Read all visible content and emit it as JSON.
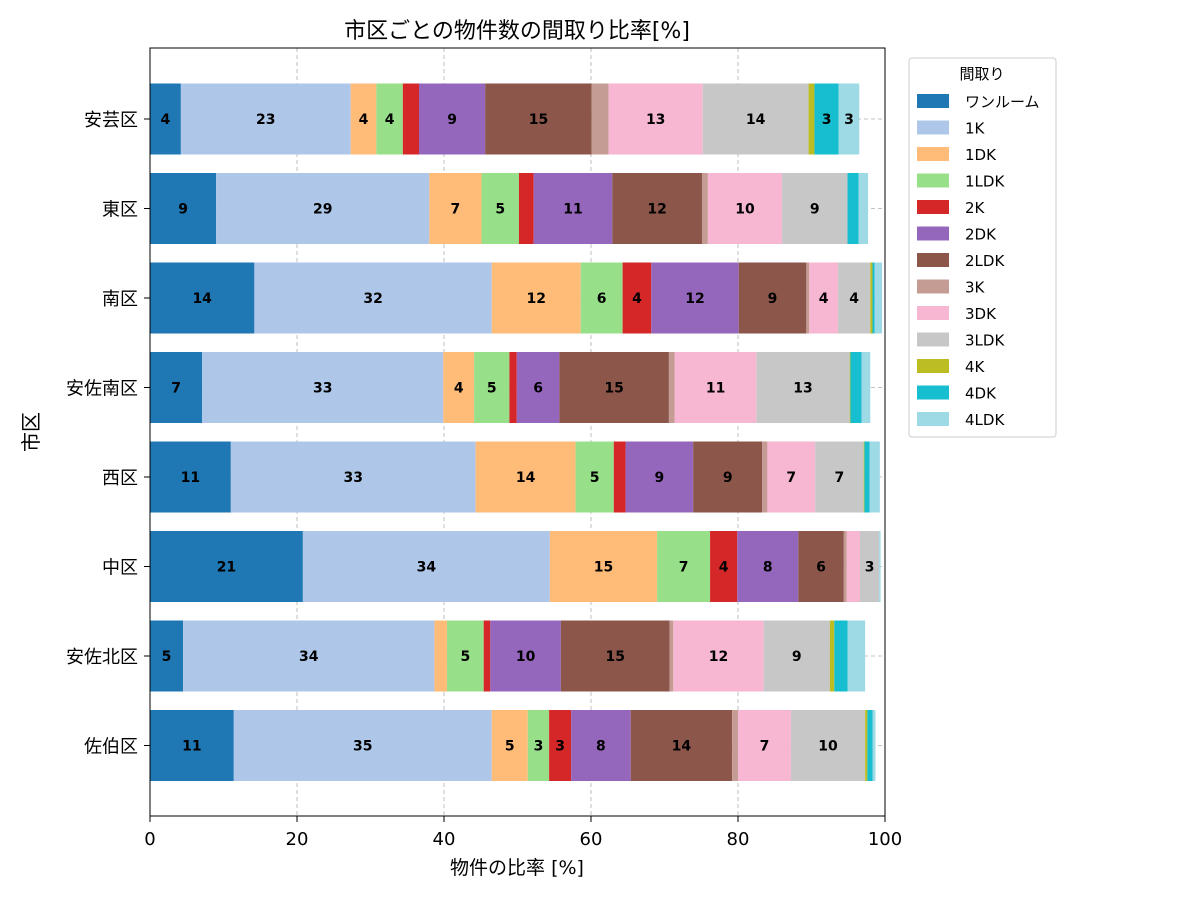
{
  "chart_data": {
    "type": "bar",
    "orientation": "horizontal",
    "stacked": true,
    "title": "市区ごとの物件数の間取り比率[%]",
    "xlabel": "物件の比率 [%]",
    "ylabel": "市区",
    "xlim": [
      0,
      100
    ],
    "xticks": [
      "0",
      "20",
      "40",
      "60",
      "80",
      "100"
    ],
    "grid": true,
    "legend_title": "間取り",
    "legend_position": "outside-top-right",
    "categories": [
      "安芸区",
      "東区",
      "南区",
      "安佐南区",
      "西区",
      "中区",
      "安佐北区",
      "佐伯区"
    ],
    "series": [
      {
        "name": "ワンルーム",
        "color": "#1f77b4",
        "values": [
          4.2,
          9.0,
          14.2,
          7.1,
          11.0,
          20.8,
          4.5,
          11.4
        ]
      },
      {
        "name": "1K",
        "color": "#aec7e8",
        "values": [
          23.1,
          29.0,
          32.3,
          32.8,
          33.3,
          33.6,
          34.2,
          35.1
        ]
      },
      {
        "name": "1DK",
        "color": "#ffbb78",
        "values": [
          3.5,
          7.1,
          12.1,
          4.2,
          13.6,
          14.6,
          1.7,
          4.9
        ]
      },
      {
        "name": "1LDK",
        "color": "#98df8a",
        "values": [
          3.6,
          5.1,
          5.7,
          4.8,
          5.2,
          7.2,
          5.0,
          2.9
        ]
      },
      {
        "name": "2K",
        "color": "#d62728",
        "values": [
          2.2,
          2.0,
          3.9,
          1.0,
          1.6,
          3.7,
          0.9,
          3.0
        ]
      },
      {
        "name": "2DK",
        "color": "#9467bd",
        "values": [
          9.0,
          10.7,
          11.9,
          5.8,
          9.2,
          8.3,
          9.6,
          8.1
        ]
      },
      {
        "name": "2LDK",
        "color": "#8c564b",
        "values": [
          14.5,
          12.2,
          9.2,
          14.9,
          9.4,
          6.2,
          14.8,
          13.8
        ]
      },
      {
        "name": "3K",
        "color": "#c49c94",
        "values": [
          2.3,
          0.8,
          0.4,
          0.8,
          0.7,
          0.4,
          0.5,
          0.8
        ]
      },
      {
        "name": "3DK",
        "color": "#f7b6d2",
        "values": [
          12.8,
          10.1,
          3.9,
          11.1,
          6.5,
          1.8,
          12.3,
          7.2
        ]
      },
      {
        "name": "3LDK",
        "color": "#c7c7c7",
        "values": [
          14.4,
          8.9,
          4.4,
          12.7,
          6.6,
          2.6,
          9.0,
          10.1
        ]
      },
      {
        "name": "4K",
        "color": "#bcbd22",
        "values": [
          0.8,
          0.0,
          0.3,
          0.1,
          0.1,
          0.0,
          0.6,
          0.3
        ]
      },
      {
        "name": "4DK",
        "color": "#17becf",
        "values": [
          3.3,
          1.5,
          0.3,
          1.5,
          0.7,
          0.0,
          1.8,
          0.7
        ]
      },
      {
        "name": "4LDK",
        "color": "#9edae5",
        "values": [
          2.8,
          1.3,
          1.0,
          1.2,
          1.4,
          0.2,
          2.4,
          0.4
        ]
      }
    ]
  }
}
